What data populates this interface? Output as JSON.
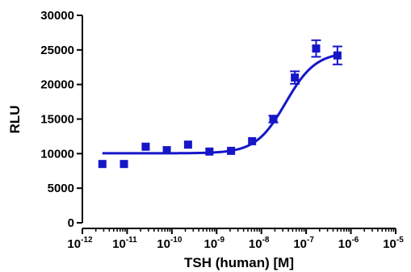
{
  "chart_data": {
    "type": "scatter",
    "title": "",
    "xlabel": "TSH (human) [M]",
    "ylabel": "RLU",
    "x_scale": "log",
    "xlim": [
      1e-12,
      1e-05
    ],
    "ylim": [
      0,
      30000
    ],
    "x_ticks": [
      {
        "base": "10",
        "exp": "-12"
      },
      {
        "base": "10",
        "exp": "-11"
      },
      {
        "base": "10",
        "exp": "-10"
      },
      {
        "base": "10",
        "exp": "-9"
      },
      {
        "base": "10",
        "exp": "-8"
      },
      {
        "base": "10",
        "exp": "-7"
      },
      {
        "base": "10",
        "exp": "-6"
      },
      {
        "base": "10",
        "exp": "-5"
      }
    ],
    "y_ticks": [
      "0",
      "5000",
      "10000",
      "15000",
      "20000",
      "25000",
      "30000"
    ],
    "grid": false,
    "legend": "none",
    "series": [
      {
        "marker": "square",
        "color": "#1616c8",
        "points": [
          {
            "x": 2.8e-12,
            "y": 8500
          },
          {
            "x": 8.5e-12,
            "y": 8500
          },
          {
            "x": 2.6e-11,
            "y": 11000
          },
          {
            "x": 7.7e-11,
            "y": 10500
          },
          {
            "x": 2.3e-10,
            "y": 11300
          },
          {
            "x": 6.9e-10,
            "y": 10300
          },
          {
            "x": 2.1e-09,
            "y": 10400
          },
          {
            "x": 6.2e-09,
            "y": 11800
          },
          {
            "x": 1.85e-08,
            "y": 15000,
            "err": 500
          },
          {
            "x": 5.6e-08,
            "y": 21000,
            "err": 900
          },
          {
            "x": 1.67e-07,
            "y": 25200,
            "err": 1200
          },
          {
            "x": 5e-07,
            "y": 24200,
            "err": 1300
          }
        ]
      }
    ],
    "fit_curve": {
      "model": "sigmoidal dose-response",
      "bottom": 10050,
      "top": 24700,
      "ec50": 3.5e-08,
      "hill": 1.3,
      "x_from": 2.8e-12,
      "x_to": 5e-07,
      "color": "#1616c8"
    }
  }
}
